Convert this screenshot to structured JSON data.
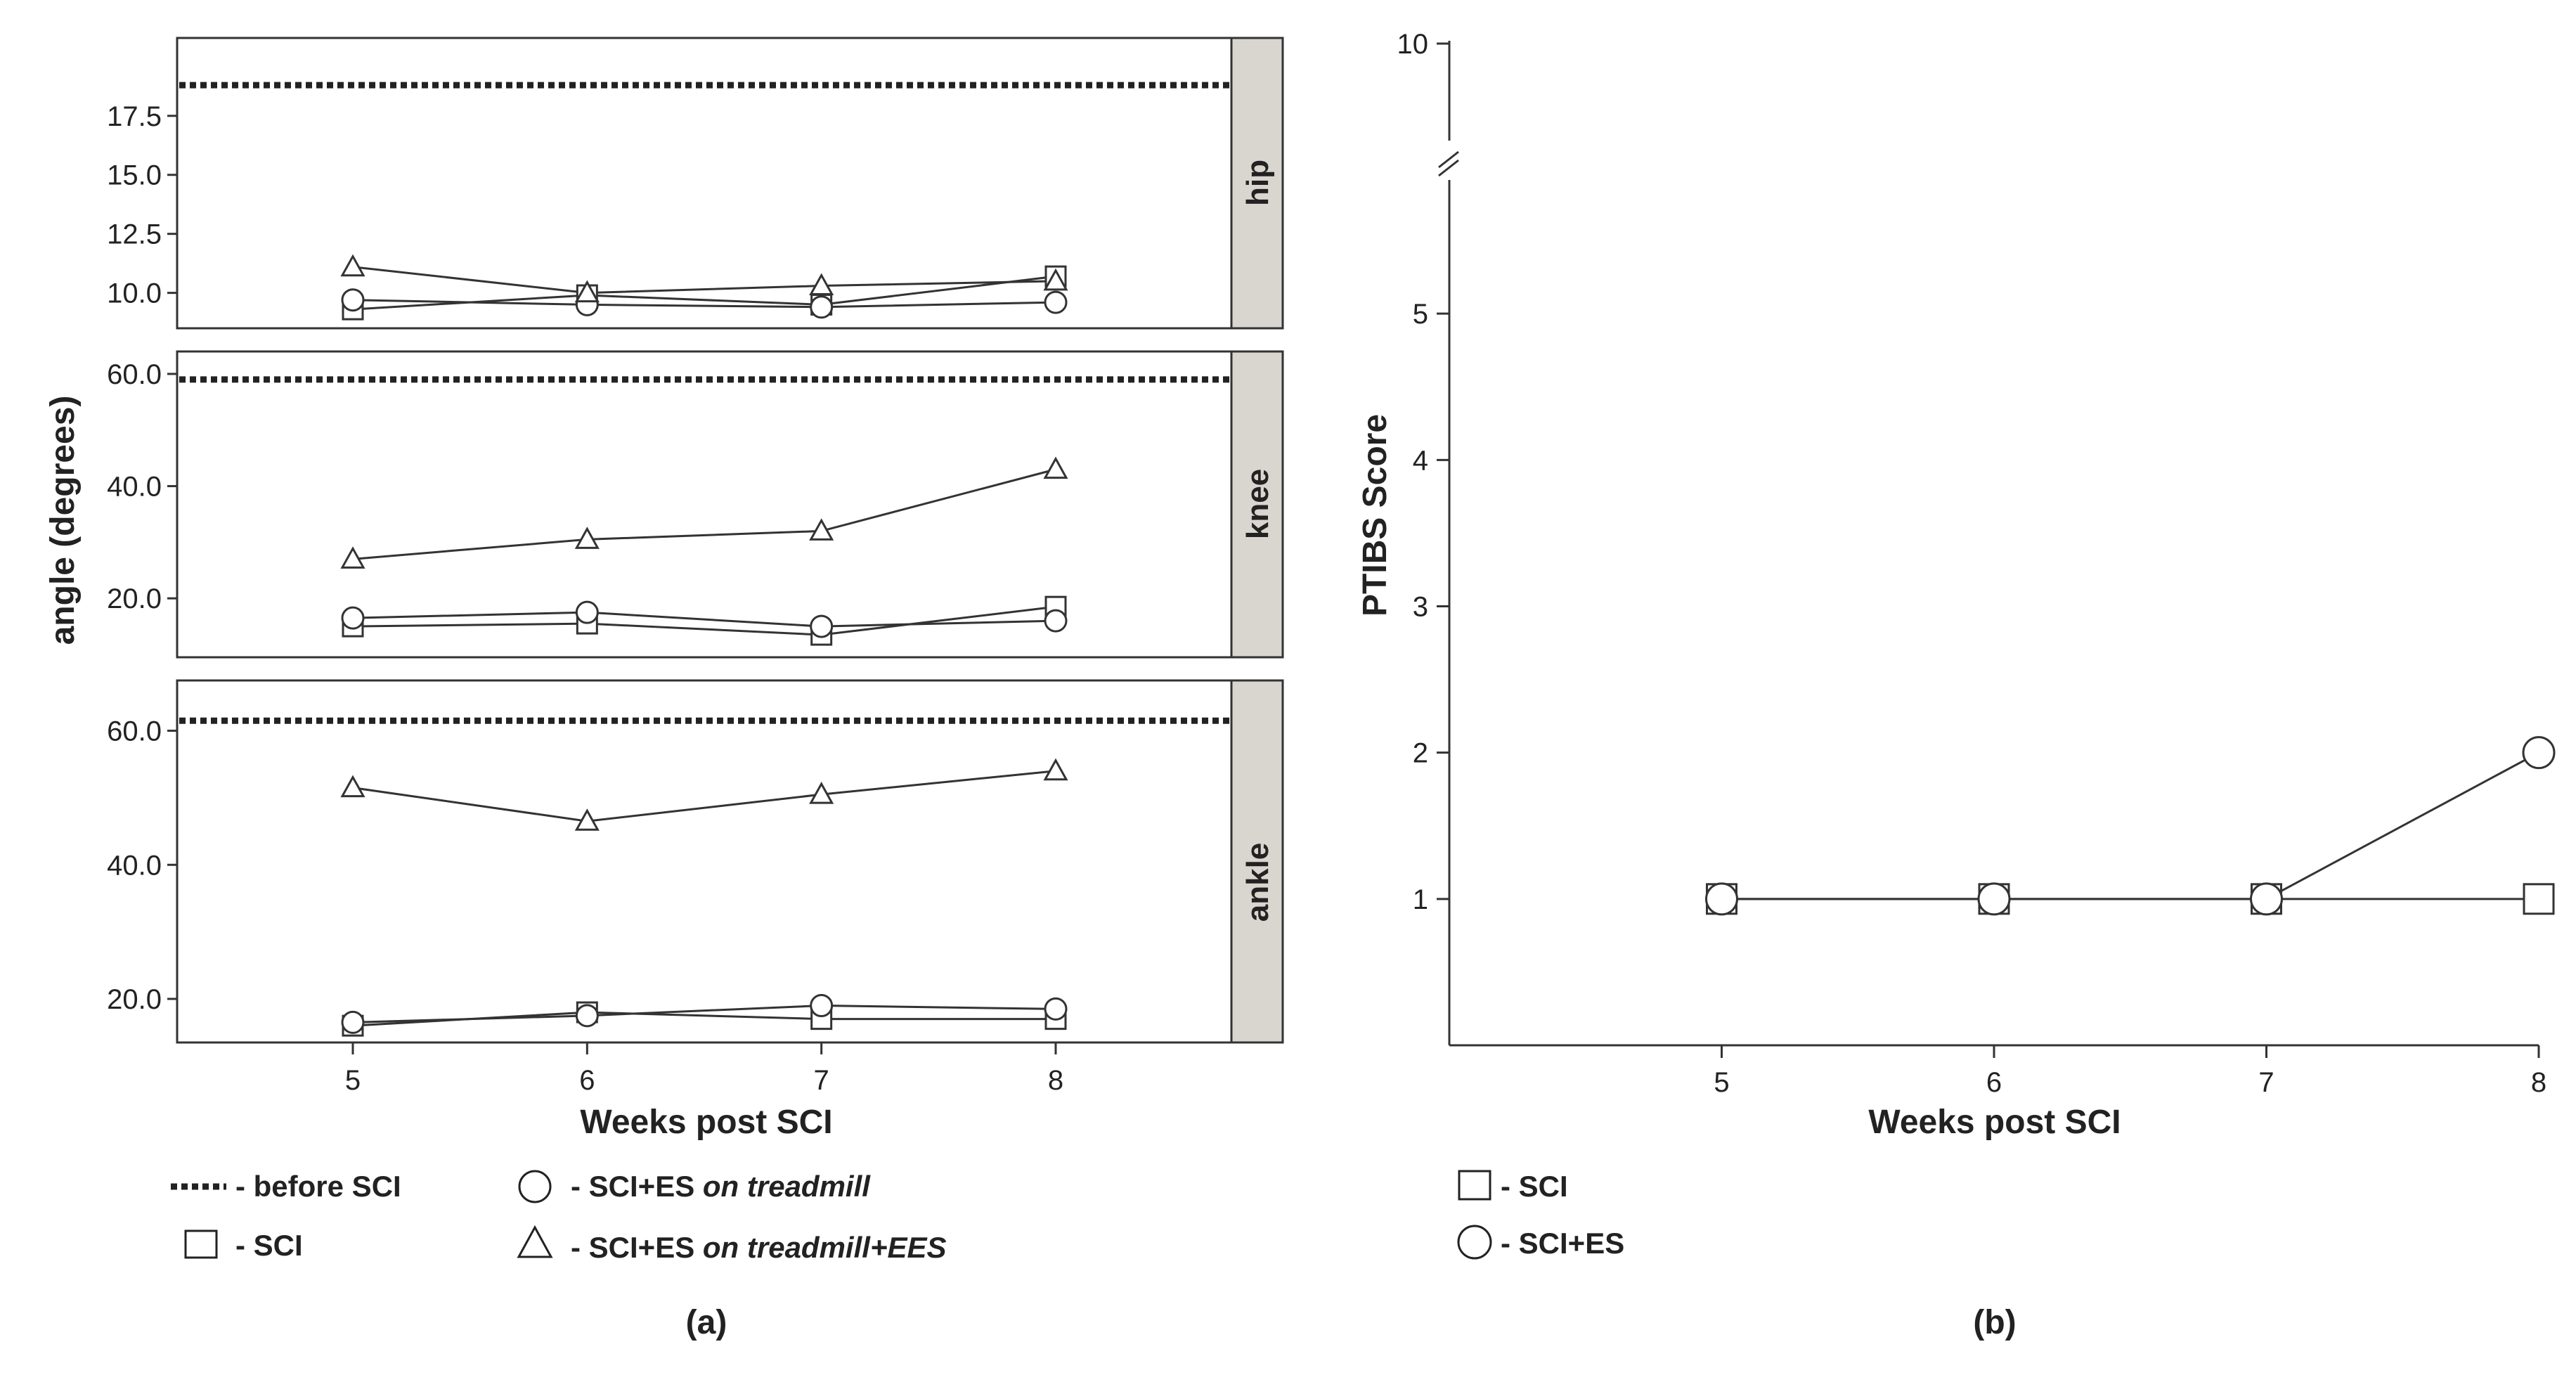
{
  "chart_data": [
    {
      "type": "line",
      "panel": "(a)",
      "ylabel": "angle (degrees)",
      "xlabel": "Weeks post SCI",
      "x": [
        5,
        6,
        7,
        8
      ],
      "xlim": [
        4.25,
        8.75
      ],
      "facets": [
        {
          "strip": "hip",
          "ylim": [
            8.5,
            20.8
          ],
          "yticks": [
            10.0,
            12.5,
            15.0,
            17.5
          ],
          "ytick_labels": [
            "10.0",
            "12.5",
            "15.0",
            "17.5"
          ],
          "baseline": 18.8,
          "series": [
            {
              "key": "sci",
              "values": [
                9.3,
                9.9,
                9.5,
                10.7
              ]
            },
            {
              "key": "es",
              "values": [
                9.7,
                9.5,
                9.4,
                9.6
              ]
            },
            {
              "key": "ees",
              "values": [
                11.1,
                10.0,
                10.3,
                10.5
              ]
            }
          ]
        },
        {
          "strip": "knee",
          "ylim": [
            9.5,
            64.0
          ],
          "yticks": [
            20.0,
            40.0,
            60.0
          ],
          "ytick_labels": [
            "20.0",
            "40.0",
            "60.0"
          ],
          "baseline": 59.0,
          "series": [
            {
              "key": "sci",
              "values": [
                15.0,
                15.5,
                13.5,
                18.5
              ]
            },
            {
              "key": "es",
              "values": [
                16.5,
                17.5,
                15.0,
                16.0
              ]
            },
            {
              "key": "ees",
              "values": [
                27.0,
                30.5,
                32.0,
                43.0
              ]
            }
          ]
        },
        {
          "strip": "ankle",
          "ylim": [
            13.5,
            67.5
          ],
          "yticks": [
            20.0,
            40.0,
            60.0
          ],
          "ytick_labels": [
            "20.0",
            "40.0",
            "60.0"
          ],
          "baseline": 61.5,
          "series": [
            {
              "key": "sci",
              "values": [
                16.0,
                18.0,
                17.0,
                17.0
              ]
            },
            {
              "key": "es",
              "values": [
                16.5,
                17.5,
                19.0,
                18.5
              ]
            },
            {
              "key": "ees",
              "values": [
                51.5,
                46.5,
                50.5,
                54.0
              ]
            }
          ]
        }
      ],
      "legend": {
        "before": "- before SCI",
        "sci": "- SCI",
        "es_prefix": "- SCI+ES ",
        "es_italic": "on treadmill",
        "ees_prefix": "- SCI+ES ",
        "ees_italic": "on treadmill+EES"
      }
    },
    {
      "type": "line",
      "panel": "(b)",
      "ylabel": "PTIBS Score",
      "xlabel": "Weeks post SCI",
      "x": [
        5,
        6,
        7,
        8
      ],
      "xlim": [
        4.0,
        8.0
      ],
      "ylim": [
        0,
        6
      ],
      "yticks": [
        1,
        2,
        3,
        4,
        5
      ],
      "ytick_labels": [
        "1",
        "2",
        "3",
        "4",
        "5"
      ],
      "ybreak_tick": "10",
      "series": [
        {
          "key": "sci",
          "name": "- SCI",
          "values": [
            1,
            1,
            1,
            1
          ]
        },
        {
          "key": "es",
          "name": "- SCI+ES",
          "values": [
            1,
            1,
            1,
            2
          ]
        }
      ]
    }
  ]
}
